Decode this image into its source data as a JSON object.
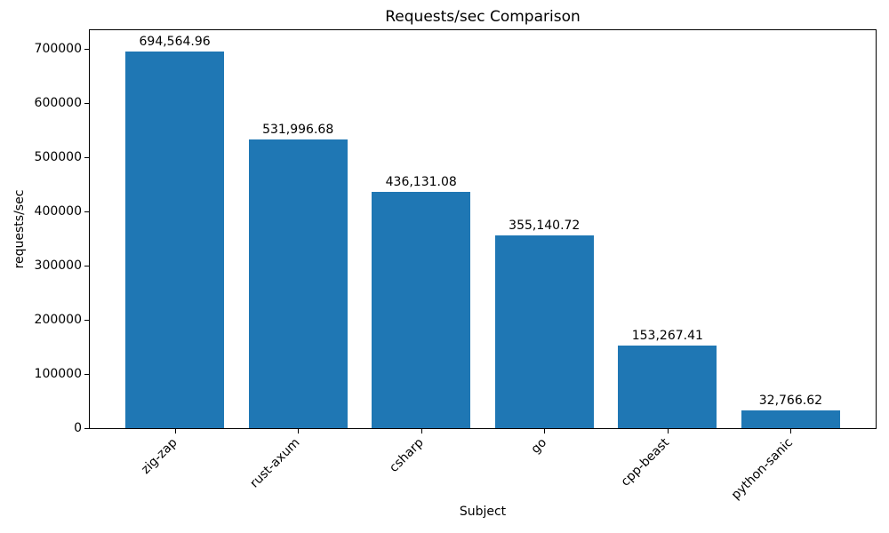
{
  "chart_data": {
    "type": "bar",
    "title": "Requests/sec Comparison",
    "xlabel": "Subject",
    "ylabel": "requests/sec",
    "categories": [
      "zig-zap",
      "rust-axum",
      "csharp",
      "go",
      "cpp-beast",
      "python-sanic"
    ],
    "values": [
      694564.96,
      531996.68,
      436131.08,
      355140.72,
      153267.41,
      32766.62
    ],
    "bar_labels": [
      "694,564.96",
      "531,996.68",
      "436,131.08",
      "355,140.72",
      "153,267.41",
      "32,766.62"
    ],
    "yticks": [
      0,
      100000,
      200000,
      300000,
      400000,
      500000,
      600000,
      700000
    ],
    "ylim": [
      0,
      734266
    ],
    "xlim": [
      -0.69,
      5.69
    ],
    "bar_width_units": 0.8,
    "bar_color": "#1f77b4",
    "text_color": "#000000",
    "grid": false,
    "legend": null,
    "x_tick_rotation_deg": 45
  }
}
